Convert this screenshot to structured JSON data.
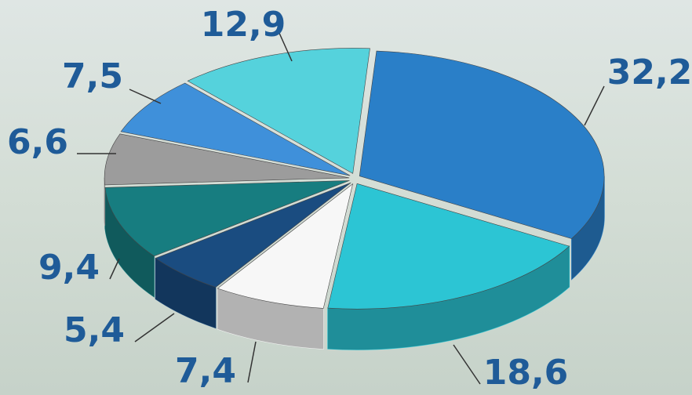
{
  "chart_data": {
    "type": "pie",
    "values": [
      32.2,
      18.6,
      7.4,
      5.4,
      9.4,
      6.6,
      7.5,
      12.9
    ],
    "value_labels": [
      "32,2",
      "18,6",
      "7,4",
      "5,4",
      "9,4",
      "6,6",
      "7,5",
      "12,9"
    ],
    "colors": [
      "#2a7fc8",
      "#2cc5d4",
      "#f7f7f7",
      "#1a4c80",
      "#177d80",
      "#9c9c9c",
      "#3f90da",
      "#55d2dc"
    ]
  }
}
